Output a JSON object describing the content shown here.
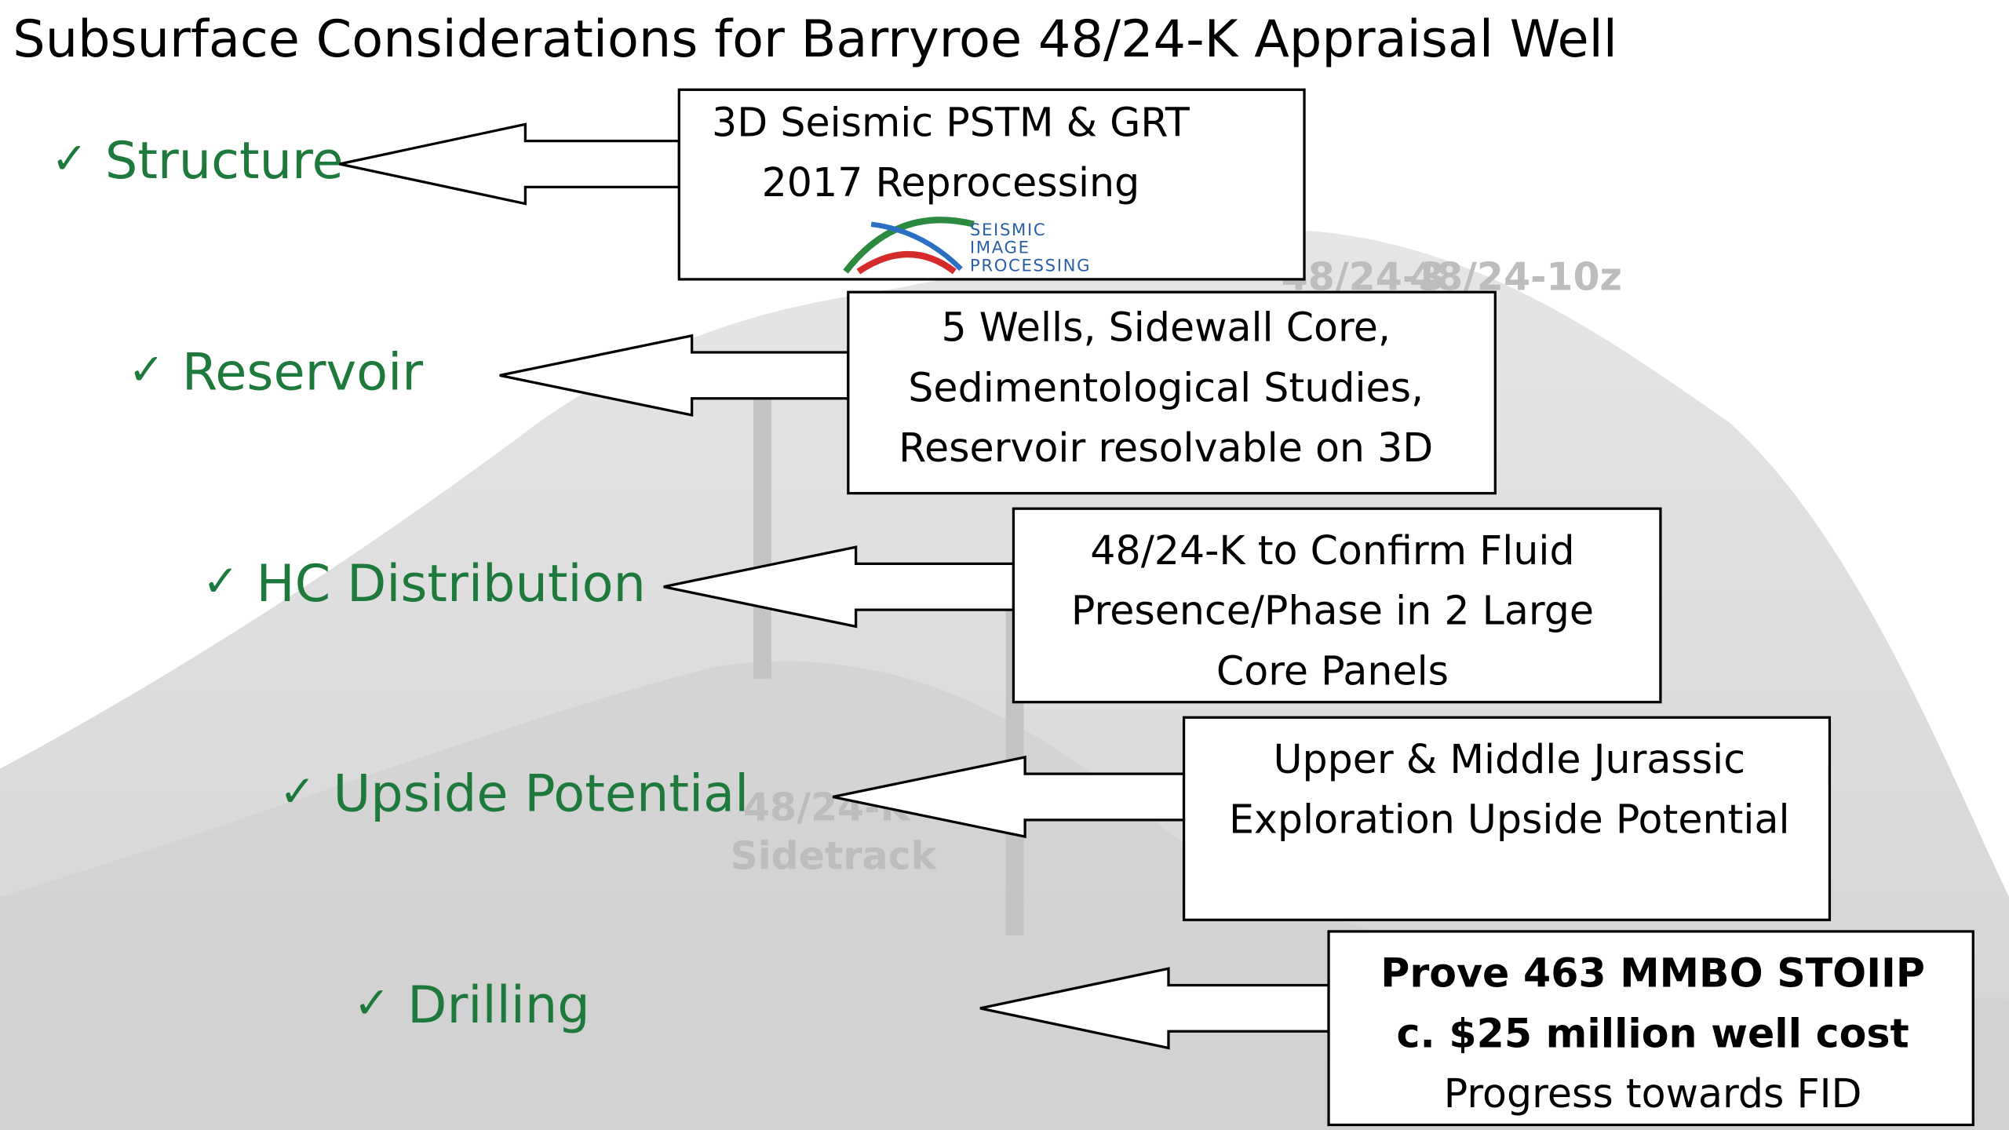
{
  "title": "Subsurface Considerations for Barryroe 48/24-K Appraisal Well",
  "items": [
    {
      "label": "Structure",
      "box": [
        "3D Seismic PSTM & GRT",
        "2017 Reprocessing"
      ]
    },
    {
      "label": "Reservoir",
      "box": [
        "5 Wells, Sidewall Core,",
        "Sedimentological Studies,",
        "Reservoir resolvable on 3D"
      ]
    },
    {
      "label": "HC Distribution",
      "box": [
        "48/24-K to Confirm Fluid",
        "Presence/Phase in 2 Large",
        "Core Panels"
      ]
    },
    {
      "label": "Upside Potential",
      "box": [
        "Upper & Middle Jurassic",
        "Exploration Upside Potential"
      ]
    },
    {
      "label": "Drilling",
      "box": [
        "Prove 463 MMBO STOIIP",
        "c. $25 million well cost",
        "Progress towards FID"
      ]
    }
  ],
  "logo": [
    "SEISMIC",
    "IMAGE",
    "PROCESSING"
  ],
  "background_labels": [
    "48/24-3",
    "48/24-10z",
    "48/24-K",
    "Sidetrack"
  ]
}
